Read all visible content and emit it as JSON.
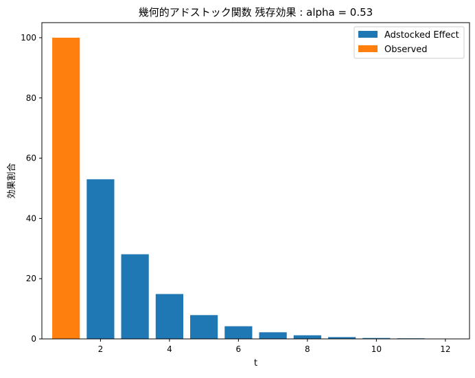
{
  "chart_data": {
    "type": "bar",
    "title": "幾何的アドストック関数 残存効果 : alpha = 0.53",
    "xlabel": "t",
    "ylabel": "効果割合",
    "xlim": [
      0.3,
      12.7
    ],
    "ylim": [
      0,
      105
    ],
    "xticks": [
      2,
      4,
      6,
      8,
      10,
      12
    ],
    "yticks": [
      0,
      20,
      40,
      60,
      80,
      100
    ],
    "grid": false,
    "legend_position": "top-right",
    "series": [
      {
        "name": "Adstocked Effect",
        "color": "#1f77b4",
        "x": [
          2,
          3,
          4,
          5,
          6,
          7,
          8,
          9,
          10,
          11,
          12
        ],
        "values": [
          53.0,
          28.1,
          14.9,
          7.9,
          4.2,
          2.2,
          1.2,
          0.6,
          0.3,
          0.2,
          0.1
        ]
      },
      {
        "name": "Observed",
        "color": "#ff7f0e",
        "x": [
          1
        ],
        "values": [
          100
        ]
      }
    ]
  }
}
